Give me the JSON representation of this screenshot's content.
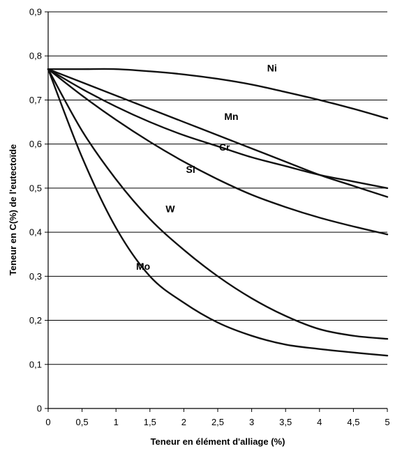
{
  "chart_data": {
    "type": "line",
    "xlabel": "Teneur en élément d'alliage (%)",
    "ylabel": "Teneur en C(%) de l'eutectoïde",
    "xlim": [
      0,
      5
    ],
    "ylim": [
      0,
      0.9
    ],
    "x_ticks": [
      "0",
      "0,5",
      "1",
      "1,5",
      "2",
      "2,5",
      "3",
      "3,5",
      "4",
      "4,5",
      "5"
    ],
    "y_ticks": [
      "0",
      "0,1",
      "0,2",
      "0,3",
      "0,4",
      "0,5",
      "0,6",
      "0,7",
      "0,8",
      "0,9"
    ],
    "grid": "horizontal",
    "series": [
      {
        "name": "Ni",
        "label_at": [
          3.3,
          0.765
        ],
        "x": [
          0,
          0.5,
          1,
          1.5,
          2,
          2.5,
          3,
          3.5,
          4,
          4.5,
          5
        ],
        "y": [
          0.77,
          0.77,
          0.77,
          0.765,
          0.758,
          0.748,
          0.735,
          0.718,
          0.7,
          0.68,
          0.658
        ]
      },
      {
        "name": "Mn",
        "label_at": [
          2.7,
          0.655
        ],
        "x": [
          0,
          0.5,
          1,
          1.5,
          2,
          2.5,
          3,
          3.5,
          4,
          4.5,
          5
        ],
        "y": [
          0.77,
          0.74,
          0.71,
          0.68,
          0.65,
          0.62,
          0.59,
          0.56,
          0.53,
          0.505,
          0.48
        ]
      },
      {
        "name": "Cr",
        "label_at": [
          2.6,
          0.585
        ],
        "x": [
          0,
          0.5,
          1,
          1.5,
          2,
          2.5,
          3,
          3.5,
          4,
          4.5,
          5
        ],
        "y": [
          0.77,
          0.725,
          0.685,
          0.65,
          0.62,
          0.595,
          0.57,
          0.55,
          0.53,
          0.515,
          0.5
        ]
      },
      {
        "name": "Si",
        "label_at": [
          2.1,
          0.535
        ],
        "x": [
          0,
          0.5,
          1,
          1.5,
          2,
          2.5,
          3,
          3.5,
          4,
          4.5,
          5
        ],
        "y": [
          0.77,
          0.71,
          0.655,
          0.605,
          0.56,
          0.52,
          0.485,
          0.457,
          0.433,
          0.413,
          0.395
        ]
      },
      {
        "name": "W",
        "label_at": [
          1.8,
          0.445
        ],
        "x": [
          0,
          0.5,
          1,
          1.5,
          2,
          2.5,
          3,
          3.5,
          4,
          4.5,
          5
        ],
        "y": [
          0.77,
          0.63,
          0.52,
          0.43,
          0.36,
          0.3,
          0.25,
          0.21,
          0.18,
          0.165,
          0.158
        ]
      },
      {
        "name": "Mo",
        "label_at": [
          1.4,
          0.315
        ],
        "x": [
          0,
          0.5,
          1,
          1.5,
          2,
          2.5,
          3,
          3.5,
          4,
          4.5,
          5
        ],
        "y": [
          0.77,
          0.57,
          0.41,
          0.3,
          0.24,
          0.195,
          0.165,
          0.145,
          0.135,
          0.127,
          0.12
        ]
      }
    ]
  }
}
